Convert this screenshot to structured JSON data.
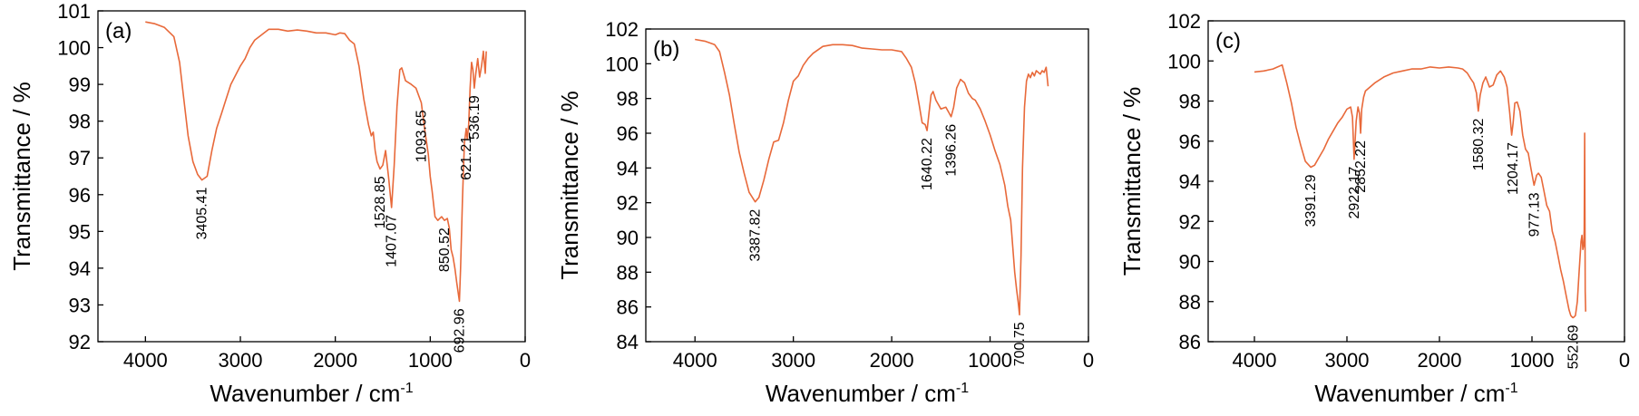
{
  "chart_data": [
    {
      "type": "line",
      "panel_label": "(a)",
      "xlabel": "Wavenumber / cm",
      "xlabel_sup": "-1",
      "ylabel": "Transmittance / %",
      "xlim": [
        4500,
        0
      ],
      "ylim": [
        92,
        101
      ],
      "xticks": [
        4000,
        3000,
        2000,
        1000,
        0
      ],
      "yticks": [
        92,
        93,
        94,
        95,
        96,
        97,
        98,
        99,
        100,
        101
      ],
      "series": [
        {
          "color": "#E8693A",
          "x": [
            4000,
            3900,
            3800,
            3700,
            3640,
            3600,
            3550,
            3500,
            3450,
            3405.41,
            3350,
            3300,
            3250,
            3200,
            3150,
            3100,
            3000,
            2950,
            2900,
            2850,
            2800,
            2700,
            2600,
            2500,
            2400,
            2300,
            2200,
            2100,
            2000,
            1950,
            1900,
            1850,
            1800,
            1750,
            1700,
            1650,
            1620,
            1600,
            1580,
            1560,
            1528.85,
            1500,
            1470,
            1440,
            1407.07,
            1380,
            1350,
            1320,
            1300,
            1260,
            1200,
            1150,
            1093.65,
            1060,
            1020,
            1000,
            980,
            950,
            920,
            900,
            880,
            850.52,
            820,
            800,
            780,
            760,
            740,
            720,
            692.96,
            680,
            660,
            640,
            621.21,
            610,
            595,
            580,
            565,
            550,
            536.19,
            520,
            500,
            480,
            460,
            440,
            420,
            410
          ],
          "y": [
            100.7,
            100.65,
            100.55,
            100.3,
            99.6,
            98.7,
            97.6,
            96.9,
            96.55,
            96.4,
            96.5,
            97.2,
            97.8,
            98.2,
            98.6,
            99.0,
            99.5,
            99.7,
            100.0,
            100.2,
            100.3,
            100.5,
            100.5,
            100.45,
            100.48,
            100.45,
            100.4,
            100.4,
            100.35,
            100.4,
            100.38,
            100.2,
            100.1,
            99.5,
            98.6,
            97.9,
            97.6,
            97.7,
            97.2,
            96.9,
            96.7,
            96.8,
            97.2,
            96.5,
            95.65,
            96.8,
            98.4,
            99.4,
            99.45,
            99.1,
            99.0,
            98.9,
            98.5,
            97.8,
            97.1,
            96.5,
            96.1,
            95.4,
            95.3,
            95.35,
            95.4,
            95.3,
            95.35,
            95.1,
            94.5,
            94.3,
            94.0,
            93.6,
            93.1,
            94.0,
            95.9,
            97.4,
            97.8,
            97.5,
            97.9,
            98.9,
            99.6,
            99.4,
            98.9,
            99.3,
            99.7,
            99.2,
            99.5,
            99.9,
            99.3,
            99.9
          ]
        }
      ],
      "annotations": [
        {
          "text": "3405.41",
          "x": 3405.41,
          "y": 96.4
        },
        {
          "text": "1528.85",
          "x": 1528.85,
          "y": 96.7
        },
        {
          "text": "1407.07",
          "x": 1407.07,
          "y": 95.65
        },
        {
          "text": "1093.65",
          "x": 1093.65,
          "y": 98.5
        },
        {
          "text": "850.52",
          "x": 850.52,
          "y": 95.3
        },
        {
          "text": "692.96",
          "x": 692.96,
          "y": 93.1
        },
        {
          "text": "621.21",
          "x": 621.21,
          "y": 97.8
        },
        {
          "text": "536.19",
          "x": 536.19,
          "y": 98.9
        }
      ]
    },
    {
      "type": "line",
      "panel_label": "(b)",
      "xlabel": "Wavenumber / cm",
      "xlabel_sup": "-1",
      "ylabel": "Transmittance / %",
      "xlim": [
        4500,
        0
      ],
      "ylim": [
        84,
        102
      ],
      "xticks": [
        4000,
        3000,
        2000,
        1000,
        0
      ],
      "yticks": [
        84,
        86,
        88,
        90,
        92,
        94,
        96,
        98,
        100,
        102
      ],
      "series": [
        {
          "color": "#E8693A",
          "x": [
            4000,
            3900,
            3800,
            3750,
            3700,
            3650,
            3600,
            3550,
            3500,
            3450,
            3387.82,
            3350,
            3300,
            3250,
            3200,
            3150,
            3100,
            3050,
            3000,
            2950,
            2900,
            2850,
            2800,
            2700,
            2600,
            2500,
            2400,
            2300,
            2200,
            2100,
            2000,
            1900,
            1850,
            1800,
            1760,
            1720,
            1690,
            1660,
            1640.22,
            1620,
            1600,
            1580,
            1550,
            1500,
            1450,
            1420,
            1396.26,
            1370,
            1340,
            1300,
            1260,
            1220,
            1180,
            1150,
            1100,
            1050,
            1000,
            950,
            900,
            850,
            820,
            790,
            770,
            750,
            730,
            715,
            700.75,
            685,
            670,
            650,
            630,
            610,
            590,
            570,
            550,
            530,
            510,
            490,
            470,
            450,
            430,
            410
          ],
          "y": [
            101.4,
            101.3,
            101.1,
            100.7,
            99.5,
            98.2,
            96.5,
            94.9,
            93.7,
            92.6,
            92.05,
            92.3,
            93.3,
            94.5,
            95.5,
            95.6,
            96.6,
            97.9,
            99.0,
            99.3,
            99.9,
            100.3,
            100.6,
            101.0,
            101.1,
            101.1,
            101.05,
            100.9,
            100.85,
            100.8,
            100.8,
            100.7,
            100.3,
            99.8,
            98.9,
            97.6,
            96.6,
            96.5,
            96.15,
            97.2,
            98.2,
            98.4,
            97.9,
            97.4,
            97.5,
            97.2,
            96.95,
            97.5,
            98.6,
            99.1,
            98.9,
            98.3,
            98.0,
            97.9,
            97.4,
            96.7,
            95.9,
            95.0,
            94.2,
            93.0,
            91.8,
            91.0,
            89.5,
            88.0,
            87.0,
            86.3,
            85.55,
            89.0,
            94.0,
            97.5,
            99.0,
            99.4,
            99.2,
            99.5,
            99.3,
            99.6,
            99.5,
            99.4,
            99.6,
            99.5,
            99.8,
            98.7
          ]
        }
      ],
      "annotations": [
        {
          "text": "3387.82",
          "x": 3387.82,
          "y": 92.05
        },
        {
          "text": "1640.22",
          "x": 1640.22,
          "y": 96.15
        },
        {
          "text": "1396.26",
          "x": 1396.26,
          "y": 96.95
        },
        {
          "text": "700.75",
          "x": 700.75,
          "y": 85.55
        }
      ]
    },
    {
      "type": "line",
      "panel_label": "(c)",
      "xlabel": "Wavenumber / cm",
      "xlabel_sup": "-1",
      "ylabel": "Transmittance / %",
      "xlim": [
        4500,
        0
      ],
      "ylim": [
        86,
        102
      ],
      "xticks": [
        4000,
        3000,
        2000,
        1000,
        0
      ],
      "yticks": [
        86,
        88,
        90,
        92,
        94,
        96,
        98,
        100,
        102
      ],
      "series": [
        {
          "color": "#E8693A",
          "x": [
            4000,
            3900,
            3800,
            3750,
            3700,
            3650,
            3600,
            3550,
            3500,
            3450,
            3391.29,
            3350,
            3300,
            3250,
            3200,
            3150,
            3100,
            3050,
            3000,
            2960,
            2940,
            2922.17,
            2900,
            2880,
            2865,
            2852.22,
            2840,
            2820,
            2800,
            2700,
            2600,
            2500,
            2400,
            2300,
            2200,
            2100,
            2000,
            1900,
            1800,
            1750,
            1700,
            1660,
            1630,
            1600,
            1580.32,
            1560,
            1530,
            1500,
            1460,
            1420,
            1380,
            1340,
            1300,
            1270,
            1240,
            1220,
            1204.17,
            1185,
            1160,
            1130,
            1100,
            1070,
            1040,
            1010,
            977.13,
            950,
            930,
            900,
            870,
            840,
            810,
            780,
            750,
            720,
            690,
            660,
            630,
            600,
            580,
            560,
            552.69,
            530,
            510,
            490,
            470,
            460,
            450,
            440,
            435,
            430,
            425,
            420
          ],
          "y": [
            99.45,
            99.5,
            99.6,
            99.7,
            99.8,
            98.9,
            97.9,
            96.7,
            95.8,
            95.0,
            94.7,
            94.8,
            95.2,
            95.6,
            96.1,
            96.5,
            96.9,
            97.2,
            97.6,
            97.7,
            97.2,
            95.1,
            97.0,
            97.7,
            97.4,
            96.4,
            97.6,
            98.2,
            98.5,
            98.9,
            99.2,
            99.4,
            99.5,
            99.6,
            99.6,
            99.7,
            99.65,
            99.7,
            99.65,
            99.6,
            99.4,
            99.1,
            98.9,
            98.4,
            97.5,
            98.3,
            98.9,
            99.2,
            98.7,
            98.8,
            99.3,
            99.5,
            99.2,
            98.7,
            97.4,
            96.3,
            96.9,
            97.9,
            97.95,
            97.5,
            96.3,
            95.6,
            95.4,
            94.6,
            93.8,
            94.3,
            94.4,
            94.2,
            93.5,
            92.8,
            92.5,
            91.5,
            91.0,
            90.3,
            89.6,
            89.0,
            88.3,
            87.6,
            87.3,
            87.2,
            87.2,
            87.3,
            88.0,
            89.5,
            91.0,
            91.3,
            90.6,
            90.8,
            91.6,
            96.4,
            88.5,
            87.5
          ]
        }
      ],
      "annotations": [
        {
          "text": "3391.29",
          "x": 3391.29,
          "y": 94.7
        },
        {
          "text": "2922.17",
          "x": 2922.17,
          "y": 95.1
        },
        {
          "text": "2852.22",
          "x": 2852.22,
          "y": 96.4
        },
        {
          "text": "1580.32",
          "x": 1580.32,
          "y": 97.5
        },
        {
          "text": "1204.17",
          "x": 1204.17,
          "y": 96.3
        },
        {
          "text": "977.13",
          "x": 977.13,
          "y": 93.8
        },
        {
          "text": "552.69",
          "x": 552.69,
          "y": 87.2
        }
      ]
    }
  ]
}
